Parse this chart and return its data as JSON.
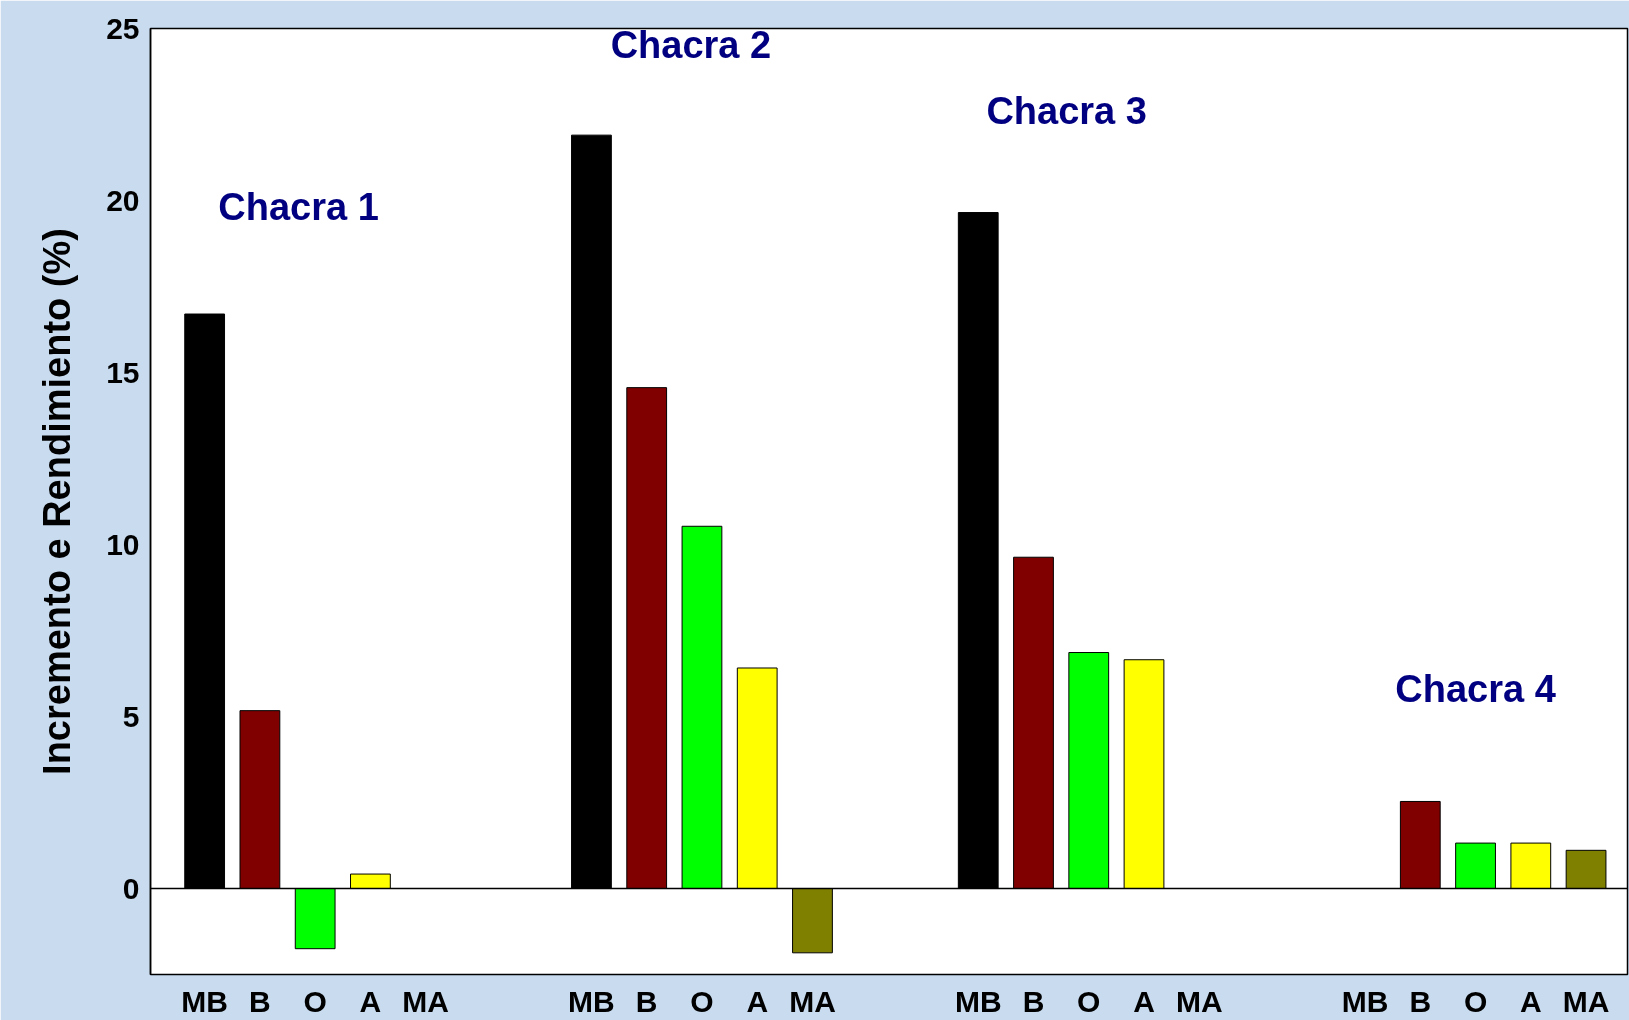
{
  "chart_data": {
    "type": "bar",
    "ylabel": "Incremento e Rendimiento (%)",
    "categories": [
      "MB",
      "B",
      "O",
      "A",
      "MA",
      null,
      null,
      "MB",
      "B",
      "O",
      "A",
      "MA",
      null,
      null,
      "MB",
      "B",
      "O",
      "A",
      "MA",
      null,
      null,
      "MB",
      "B",
      "O",
      "A",
      "MA"
    ],
    "values": [
      16.7,
      5.17,
      -1.75,
      0.42,
      null,
      null,
      null,
      21.9,
      14.56,
      10.53,
      6.41,
      -1.87,
      null,
      null,
      19.65,
      9.63,
      6.86,
      6.65,
      null,
      null,
      null,
      null,
      2.53,
      1.32,
      1.32,
      1.11
    ],
    "colors": [
      "#000000",
      "#800000",
      "#00ff00",
      "#ffff00",
      "#808000",
      null,
      null,
      "#000000",
      "#800000",
      "#00ff00",
      "#ffff00",
      "#808000",
      null,
      null,
      "#000000",
      "#800000",
      "#00ff00",
      "#ffff00",
      "#808000",
      null,
      null,
      "#000000",
      "#800000",
      "#00ff00",
      "#ffff00",
      "#808000"
    ],
    "annotations": [
      "Chacra 1",
      "Chacra 2",
      "Chacra 3",
      "Chacra 4"
    ],
    "ylim": [
      -2.5,
      25
    ],
    "yticks": [
      0,
      5,
      10,
      15,
      20,
      25
    ]
  }
}
